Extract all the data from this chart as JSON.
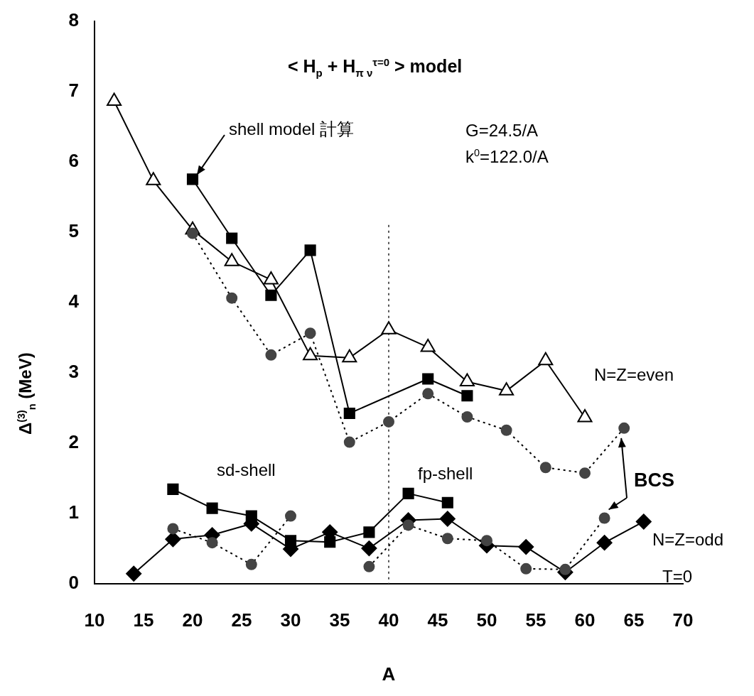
{
  "chart_data": {
    "type": "line",
    "title": "< H$_{p}$ + H$_{π ν}$$^{τ=0}$ > model",
    "xlabel": "A",
    "ylabel": "Δ$^{(3)}$$_{n}$ (MeV)",
    "xlim": [
      10,
      70
    ],
    "xticks": [
      10,
      15,
      20,
      25,
      30,
      35,
      40,
      45,
      50,
      55,
      60,
      65,
      70
    ],
    "ylim": [
      0,
      8
    ],
    "yticks": [
      0,
      1,
      2,
      3,
      4,
      5,
      6,
      7,
      8
    ],
    "grid": false,
    "legend": false,
    "series": [
      {
        "color": "#000000",
        "marker": "triangle",
        "line_style": "solid",
        "x": [
          12,
          16,
          20,
          24,
          28,
          32,
          36,
          40,
          44,
          48,
          52,
          56,
          60
        ],
        "values": [
          6.86,
          5.73,
          5.03,
          4.58,
          4.32,
          3.24,
          3.21,
          3.61,
          3.36,
          2.87,
          2.74,
          3.17,
          2.36
        ]
      },
      {
        "color": "#000000",
        "marker": "square",
        "line_style": "solid",
        "x": [
          20,
          24,
          28,
          32,
          36,
          44,
          48
        ],
        "values": [
          5.75,
          4.91,
          4.1,
          4.74,
          2.42,
          2.91,
          2.67
        ]
      },
      {
        "color": "#444444",
        "marker": "circle",
        "line_style": "dotted",
        "x": [
          20,
          24,
          28,
          32,
          36,
          40,
          44,
          48,
          52,
          56,
          60,
          64
        ],
        "values": [
          4.98,
          4.06,
          3.25,
          3.56,
          2.01,
          2.3,
          2.7,
          2.37,
          2.18,
          1.65,
          1.57,
          2.21
        ]
      },
      {
        "color": "#000000",
        "marker": "square",
        "line_style": "solid",
        "x": [
          18,
          22,
          26,
          30,
          34,
          38,
          42,
          46
        ],
        "values": [
          1.34,
          1.07,
          0.96,
          0.61,
          0.59,
          0.73,
          1.28,
          1.15
        ]
      },
      {
        "color": "#000000",
        "marker": "diamond",
        "line_style": "solid",
        "x": [
          14,
          18,
          22,
          26,
          30,
          34,
          38,
          42,
          46,
          50,
          54,
          58,
          62,
          66
        ],
        "values": [
          0.14,
          0.63,
          0.69,
          0.85,
          0.49,
          0.73,
          0.5,
          0.9,
          0.92,
          0.54,
          0.52,
          0.16,
          0.58,
          0.88
        ]
      },
      {
        "color": "#444444",
        "marker": "circle",
        "line_style": "dotted",
        "x": [
          18,
          22,
          26,
          30,
          34,
          38,
          42,
          46,
          50,
          54,
          58,
          62
        ],
        "values": [
          0.78,
          0.58,
          0.27,
          0.96,
          null,
          0.24,
          0.83,
          0.64,
          0.61,
          0.21,
          0.2,
          0.93
        ]
      }
    ],
    "ref_lines": [
      {
        "axis": "x",
        "value": 40,
        "color": "#555555",
        "line_style": "dotted"
      }
    ],
    "annotations": [
      {
        "text": "shell model  計算",
        "x": 20,
        "y": 5.75
      },
      "G=24.5/A",
      "k$^{0}$=122.0/A",
      "N=Z=even",
      "sd-shell",
      "fp-shell",
      {
        "text": "BCS",
        "x": 62,
        "y": 0.93
      },
      "N=Z=odd",
      "T=0"
    ]
  }
}
